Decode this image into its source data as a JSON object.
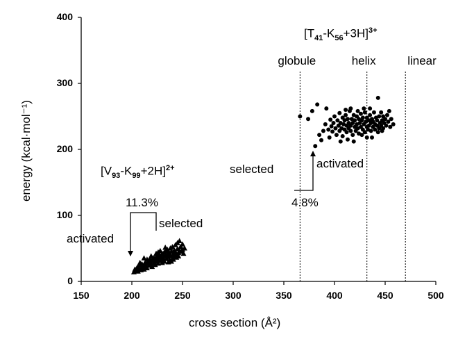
{
  "chart_data": {
    "type": "scatter",
    "title": "",
    "xlabel": "cross section (Å²)",
    "ylabel": "energy (kcal·mol⁻¹)",
    "xlim": [
      150,
      500
    ],
    "ylim": [
      0,
      400
    ],
    "x_ticks": [
      "150",
      "200",
      "250",
      "300",
      "350",
      "400",
      "450",
      "500"
    ],
    "y_ticks": [
      "0",
      "100",
      "200",
      "300",
      "400"
    ],
    "grid": false,
    "legend": "none",
    "series": [
      {
        "marker": "triangle",
        "color": "#000000",
        "points": [
          [
            202,
            14
          ],
          [
            203,
            18
          ],
          [
            204,
            16
          ],
          [
            205,
            20
          ],
          [
            206,
            15
          ],
          [
            206,
            22
          ],
          [
            207,
            19
          ],
          [
            208,
            24
          ],
          [
            209,
            17
          ],
          [
            210,
            21
          ],
          [
            210,
            26
          ],
          [
            211,
            23
          ],
          [
            212,
            18
          ],
          [
            213,
            25
          ],
          [
            213,
            28
          ],
          [
            214,
            22
          ],
          [
            215,
            27
          ],
          [
            215,
            20
          ],
          [
            216,
            30
          ],
          [
            217,
            24
          ],
          [
            218,
            29
          ],
          [
            218,
            33
          ],
          [
            219,
            26
          ],
          [
            220,
            31
          ],
          [
            220,
            22
          ],
          [
            221,
            35
          ],
          [
            222,
            28
          ],
          [
            223,
            32
          ],
          [
            223,
            25
          ],
          [
            224,
            37
          ],
          [
            225,
            30
          ],
          [
            225,
            34
          ],
          [
            226,
            27
          ],
          [
            227,
            36
          ],
          [
            227,
            40
          ],
          [
            228,
            31
          ],
          [
            229,
            38
          ],
          [
            229,
            33
          ],
          [
            230,
            42
          ],
          [
            230,
            28
          ],
          [
            231,
            36
          ],
          [
            232,
            44
          ],
          [
            232,
            30
          ],
          [
            233,
            39
          ],
          [
            234,
            46
          ],
          [
            234,
            34
          ],
          [
            235,
            41
          ],
          [
            235,
            48
          ],
          [
            236,
            37
          ],
          [
            237,
            43
          ],
          [
            237,
            32
          ],
          [
            238,
            50
          ],
          [
            238,
            39
          ],
          [
            239,
            45
          ],
          [
            240,
            35
          ],
          [
            240,
            52
          ],
          [
            241,
            41
          ],
          [
            242,
            47
          ],
          [
            242,
            38
          ],
          [
            243,
            55
          ],
          [
            243,
            44
          ],
          [
            244,
            40
          ],
          [
            245,
            58
          ],
          [
            245,
            49
          ],
          [
            246,
            43
          ],
          [
            247,
            61
          ],
          [
            247,
            46
          ],
          [
            248,
            52
          ],
          [
            249,
            45
          ],
          [
            250,
            56
          ],
          [
            250,
            48
          ],
          [
            251,
            42
          ],
          [
            252,
            50
          ],
          [
            226,
            44
          ],
          [
            222,
            35
          ],
          [
            217,
            32
          ],
          [
            231,
            30
          ],
          [
            236,
            29
          ],
          [
            241,
            33
          ],
          [
            244,
            36
          ],
          [
            212,
            35
          ],
          [
            219,
            38
          ],
          [
            228,
            46
          ],
          [
            233,
            51
          ],
          [
            239,
            30
          ],
          [
            246,
            38
          ],
          [
            208,
            28
          ],
          [
            215,
            33
          ],
          [
            224,
            42
          ]
        ]
      },
      {
        "marker": "circle",
        "color": "#000000",
        "points": [
          [
            366,
            250
          ],
          [
            374,
            246
          ],
          [
            378,
            258
          ],
          [
            381,
            205
          ],
          [
            383,
            268
          ],
          [
            385,
            222
          ],
          [
            387,
            214
          ],
          [
            389,
            228
          ],
          [
            391,
            238
          ],
          [
            392,
            262
          ],
          [
            394,
            230
          ],
          [
            395,
            218
          ],
          [
            396,
            245
          ],
          [
            397,
            235
          ],
          [
            398,
            227
          ],
          [
            399,
            240
          ],
          [
            400,
            250
          ],
          [
            401,
            232
          ],
          [
            402,
            222
          ],
          [
            403,
            244
          ],
          [
            404,
            236
          ],
          [
            405,
            255
          ],
          [
            405,
            228
          ],
          [
            406,
            240
          ],
          [
            407,
            232
          ],
          [
            408,
            248
          ],
          [
            408,
            220
          ],
          [
            409,
            238
          ],
          [
            410,
            244
          ],
          [
            410,
            230
          ],
          [
            411,
            252
          ],
          [
            412,
            236
          ],
          [
            412,
            226
          ],
          [
            413,
            246
          ],
          [
            414,
            240
          ],
          [
            414,
            232
          ],
          [
            415,
            258
          ],
          [
            416,
            236
          ],
          [
            416,
            228
          ],
          [
            417,
            246
          ],
          [
            418,
            240
          ],
          [
            418,
            222
          ],
          [
            419,
            252
          ],
          [
            420,
            234
          ],
          [
            420,
            244
          ],
          [
            421,
            228
          ],
          [
            422,
            250
          ],
          [
            422,
            238
          ],
          [
            423,
            232
          ],
          [
            424,
            246
          ],
          [
            424,
            224
          ],
          [
            425,
            240
          ],
          [
            426,
            254
          ],
          [
            426,
            234
          ],
          [
            427,
            244
          ],
          [
            428,
            230
          ],
          [
            428,
            248
          ],
          [
            429,
            238
          ],
          [
            430,
            226
          ],
          [
            430,
            256
          ],
          [
            431,
            242
          ],
          [
            432,
            234
          ],
          [
            432,
            248
          ],
          [
            433,
            230
          ],
          [
            434,
            244
          ],
          [
            434,
            236
          ],
          [
            435,
            252
          ],
          [
            436,
            240
          ],
          [
            436,
            228
          ],
          [
            437,
            246
          ],
          [
            438,
            234
          ],
          [
            438,
            242
          ],
          [
            439,
            256
          ],
          [
            440,
            238
          ],
          [
            440,
            230
          ],
          [
            441,
            248
          ],
          [
            442,
            236
          ],
          [
            442,
            244
          ],
          [
            443,
            278
          ],
          [
            444,
            232
          ],
          [
            444,
            250
          ],
          [
            445,
            240
          ],
          [
            446,
            236
          ],
          [
            446,
            256
          ],
          [
            447,
            244
          ],
          [
            448,
            232
          ],
          [
            448,
            250
          ],
          [
            449,
            240
          ],
          [
            450,
            246
          ],
          [
            451,
            236
          ],
          [
            452,
            252
          ],
          [
            453,
            242
          ],
          [
            454,
            258
          ],
          [
            455,
            234
          ],
          [
            456,
            246
          ],
          [
            458,
            238
          ],
          [
            413,
            215
          ],
          [
            419,
            212
          ],
          [
            437,
            218
          ],
          [
            427,
            222
          ],
          [
            432,
            218
          ],
          [
            443,
            226
          ],
          [
            406,
            212
          ],
          [
            447,
            228
          ],
          [
            416,
            262
          ],
          [
            423,
            258
          ],
          [
            429,
            262
          ],
          [
            435,
            262
          ],
          [
            411,
            260
          ]
        ]
      }
    ],
    "reference_lines": [
      {
        "x": 366,
        "label": "globule"
      },
      {
        "x": 432,
        "label": "helix"
      },
      {
        "x": 470,
        "label": "linear"
      }
    ],
    "annotations": {
      "ion_a": {
        "base": "[V",
        "sub1": "93",
        "mid": "-K",
        "sub2": "99",
        "tail": "+2H]",
        "sup": "2+"
      },
      "ion_b": {
        "base": "[T",
        "sub1": "41",
        "mid": "-K",
        "sub2": "56",
        "tail": "+3H]",
        "sup": "3+"
      },
      "pct_a": "11.3%",
      "pct_b": "4.8%",
      "activated": "activated",
      "selected": "selected"
    }
  }
}
